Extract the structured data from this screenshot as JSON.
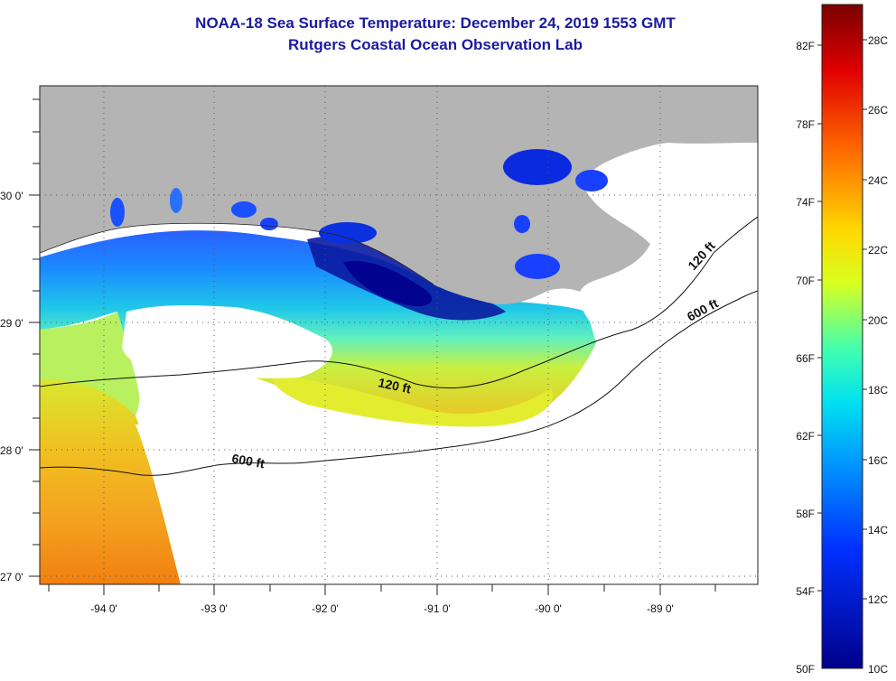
{
  "header": {
    "title_line1": "NOAA-18 Sea Surface Temperature:  December 24, 2019 1553 GMT",
    "title_line2": "Rutgers Coastal Ocean Observation Lab"
  },
  "map": {
    "lat_labels": [
      "30 0'",
      "29 0'",
      "28 0'",
      "27 0'"
    ],
    "lon_labels": [
      "-94 0'",
      "-93 0'",
      "-92 0'",
      "-91 0'",
      "-90 0'",
      "-89 0'"
    ],
    "contour_labels": [
      "120 ft",
      "120 ft",
      "600 ft",
      "600 ft"
    ],
    "colors": {
      "land": "#b4b4b4",
      "no_data": "#ffffff",
      "grid": "#555555"
    }
  },
  "colorbar": {
    "fahrenheit_labels": [
      "82F",
      "78F",
      "74F",
      "70F",
      "66F",
      "62F",
      "58F",
      "54F",
      "50F"
    ],
    "celsius_labels": [
      "28C",
      "26C",
      "24C",
      "22C",
      "20C",
      "18C",
      "16C",
      "14C",
      "12C",
      "10C"
    ],
    "gradient_colors": [
      "#8b0000",
      "#ff0000",
      "#ff8000",
      "#ffff00",
      "#00ffff",
      "#0080ff",
      "#0000ff",
      "#00008b"
    ]
  }
}
